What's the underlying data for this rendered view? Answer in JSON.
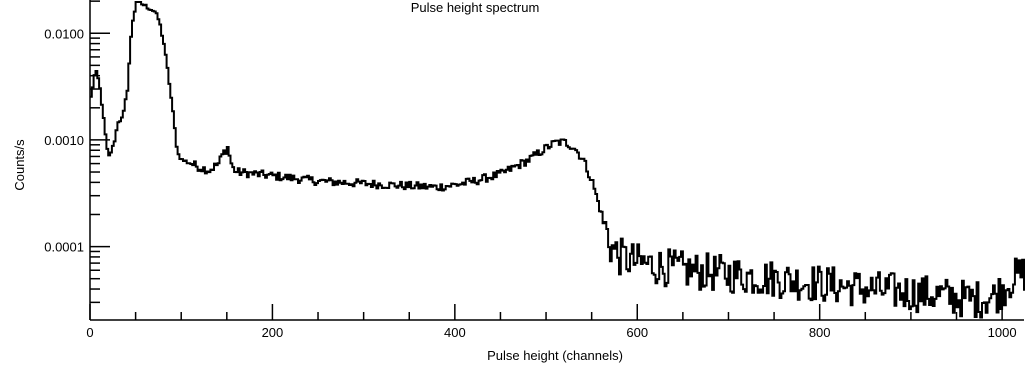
{
  "chart_data": {
    "type": "line",
    "title": "Pulse height spectrum",
    "xlabel": "Pulse height (channels)",
    "ylabel": "Counts/s",
    "xlim": [
      0,
      1024
    ],
    "ylim": [
      2.05e-05,
      0.0205
    ],
    "y_scale": "log",
    "grid": false,
    "line_color": "#000000",
    "x_tick_labels": [
      "0",
      "200",
      "400",
      "600",
      "800",
      "1000"
    ],
    "y_tick_labels": [
      "0.0001",
      "0.0010",
      "0.0100"
    ],
    "series": [
      {
        "x": [
          0,
          5,
          9,
          12,
          15,
          18,
          20,
          25,
          30,
          35,
          40,
          45,
          50,
          55,
          60,
          65,
          70,
          75,
          80,
          85,
          90,
          95,
          100,
          110,
          120,
          130,
          140,
          145,
          150,
          152,
          155,
          160,
          170,
          180,
          200,
          220,
          250,
          300,
          350,
          380,
          400,
          420,
          450,
          480,
          500,
          510,
          520,
          530,
          540,
          550,
          560,
          570,
          580,
          600,
          620,
          650,
          700,
          750,
          800,
          850,
          900,
          930,
          950,
          970,
          990,
          1000,
          1010,
          1020
        ],
        "y": [
          0.0025,
          0.0045,
          0.0035,
          0.0022,
          0.0013,
          0.0008,
          0.0007,
          0.0009,
          0.0015,
          0.0016,
          0.003,
          0.012,
          0.02,
          0.019,
          0.018,
          0.017,
          0.016,
          0.013,
          0.008,
          0.004,
          0.0018,
          0.00075,
          0.00065,
          0.0006,
          0.00055,
          0.00052,
          0.0006,
          0.00075,
          0.00085,
          0.00072,
          0.00055,
          0.0005,
          0.00049,
          0.00048,
          0.00046,
          0.00044,
          0.00041,
          0.00039,
          0.00037,
          0.00036,
          0.00038,
          0.00041,
          0.00048,
          0.00065,
          0.00085,
          0.00095,
          0.00095,
          0.00085,
          0.00065,
          0.0004,
          0.0002,
          0.0001,
          8e-05,
          7.1e-05,
          6.6e-05,
          6e-05,
          5.5e-05,
          5e-05,
          4.5e-05,
          4e-05,
          3.7e-05,
          3.5e-05,
          3.3e-05,
          3.2e-05,
          3.4e-05,
          4e-05,
          5e-05,
          5.5e-05
        ]
      }
    ]
  }
}
